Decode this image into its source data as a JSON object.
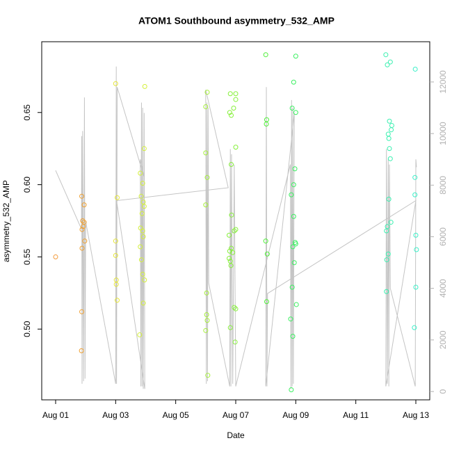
{
  "chart_data": {
    "type": "scatter",
    "title": "ATOM1 Southbound asymmetry_532_AMP",
    "x_label": "Date",
    "y_label": "asymmetry_532_AMP",
    "xlim": [
      0.537,
      13.463
    ],
    "xticks": [
      {
        "value": 1,
        "label": "Aug 01"
      },
      {
        "value": 3,
        "label": "Aug 03"
      },
      {
        "value": 5,
        "label": "Aug 05"
      },
      {
        "value": 7,
        "label": "Aug 07"
      },
      {
        "value": 9,
        "label": "Aug 09"
      },
      {
        "value": 11,
        "label": "Aug 11"
      },
      {
        "value": 13,
        "label": "Aug 13"
      }
    ],
    "ylim": [
      0.451,
      0.699
    ],
    "yticks": [
      {
        "value": 0.5,
        "label": "0.50"
      },
      0.55,
      {
        "value": 0.6,
        "label": "0.60"
      },
      0.65
    ],
    "y2lim": [
      -323,
      13560
    ],
    "y2ticks": [
      0,
      2000,
      4000,
      6000,
      8000,
      10000,
      12000
    ],
    "series": [
      {
        "type": "line",
        "axis": "y2",
        "color": "#c4c4c4",
        "x": [
          1.0,
          1.86,
          1.87,
          1.88,
          1.9,
          1.93,
          1.96,
          1.98,
          2.0,
          3.0,
          3.02,
          3.03,
          3.05,
          3.95,
          3.82,
          3.84,
          3.86,
          3.88,
          3.9,
          3.92,
          3.95,
          3.97,
          3.03,
          6.75,
          6.0,
          6.02,
          6.04,
          6.06,
          6.08,
          6.1,
          6.8,
          6.82,
          6.84,
          6.86,
          6.9,
          6.95,
          7.0,
          8.82,
          8.84,
          8.86,
          8.88,
          8.9,
          8.92,
          8.95,
          8.0,
          8.02,
          8.04,
          8.06,
          13.0,
          12.0,
          12.02,
          12.05,
          12.08,
          12.1,
          12.12,
          12.15,
          12.98,
          13.0,
          13.02
        ],
        "values": [
          8570,
          6300,
          9900,
          300,
          10100,
          400,
          11400,
          500,
          6600,
          300,
          12600,
          300,
          11800,
          8300,
          9000,
          200,
          11200,
          200,
          11000,
          100,
          10800,
          100,
          7400,
          7900,
          11700,
          300,
          11200,
          400,
          11000,
          4200,
          200,
          9400,
          200,
          9200,
          300,
          8800,
          200,
          8800,
          100,
          11300,
          200,
          11000,
          300,
          10800,
          200,
          11800,
          200,
          3800,
          7400,
          200,
          9400,
          300,
          9000,
          200,
          8800,
          4000,
          200,
          9000,
          8700
        ]
      },
      {
        "color": "#f39a3a",
        "x": [
          1.0
        ],
        "values": [
          0.55
        ]
      },
      {
        "color": "#f0a030",
        "x": [
          1.87,
          1.95,
          1.9,
          1.95,
          1.92,
          1.88,
          1.97,
          1.88,
          1.87,
          1.86
        ],
        "values": [
          0.592,
          0.586,
          0.575,
          0.574,
          0.571,
          0.569,
          0.561,
          0.556,
          0.512,
          0.485
        ]
      },
      {
        "color": "#e6e63a",
        "x": [
          3.0,
          3.05,
          3.0,
          3.0,
          3.02,
          3.02,
          3.05
        ],
        "values": [
          0.67,
          0.591,
          0.561,
          0.551,
          0.534,
          0.531,
          0.52
        ]
      },
      {
        "color": "#d4f03a",
        "x": [
          3.97,
          3.95,
          3.82,
          3.9,
          3.85,
          3.92,
          3.95,
          3.88,
          3.83,
          3.9,
          3.92,
          3.82,
          3.86,
          3.9,
          3.96,
          3.92,
          3.8
        ],
        "values": [
          0.668,
          0.625,
          0.608,
          0.601,
          0.592,
          0.588,
          0.585,
          0.58,
          0.57,
          0.568,
          0.564,
          0.557,
          0.548,
          0.538,
          0.534,
          0.518,
          0.496
        ]
      },
      {
        "color": "#a6f03a",
        "x": [
          6.05,
          6.0,
          6.0,
          6.05,
          6.0,
          6.03,
          6.03,
          6.05,
          6.0,
          6.07
        ],
        "values": [
          0.664,
          0.654,
          0.622,
          0.605,
          0.586,
          0.525,
          0.51,
          0.506,
          0.499,
          0.468
        ]
      },
      {
        "color": "#86f03a",
        "x": [
          6.82,
          7.0,
          7.0,
          6.93,
          6.8,
          6.85,
          7.0,
          6.85,
          6.86,
          7.0,
          6.95,
          6.78,
          6.85,
          6.8,
          6.9,
          6.78,
          6.82,
          6.84,
          6.95,
          7.0,
          6.82,
          6.98
        ],
        "values": [
          0.663,
          0.663,
          0.659,
          0.653,
          0.65,
          0.648,
          0.626,
          0.614,
          0.579,
          0.569,
          0.568,
          0.565,
          0.556,
          0.554,
          0.553,
          0.549,
          0.547,
          0.544,
          0.515,
          0.514,
          0.501,
          0.491
        ]
      },
      {
        "color": "#50f03a",
        "x": [
          8.0,
          8.03,
          8.02,
          8.0,
          8.05,
          8.03
        ],
        "values": [
          0.69,
          0.645,
          0.642,
          0.561,
          0.552,
          0.519
        ]
      },
      {
        "color": "#3af060",
        "x": [
          9.0,
          8.93,
          8.88,
          9.0,
          8.97,
          8.93,
          8.85,
          8.93,
          8.98,
          9.0,
          8.9,
          8.95,
          8.88,
          9.02,
          8.83,
          8.9,
          8.85
        ],
        "values": [
          0.689,
          0.671,
          0.653,
          0.65,
          0.611,
          0.6,
          0.593,
          0.578,
          0.56,
          0.559,
          0.557,
          0.546,
          0.529,
          0.517,
          0.507,
          0.495,
          0.458
        ]
      },
      {
        "color": "#3af0b0",
        "x": [
          12.0,
          12.05,
          12.15,
          12.12,
          12.2,
          12.18,
          12.08,
          12.1,
          12.12,
          12.15,
          12.1,
          12.17,
          12.05,
          12.02,
          12.08,
          12.03,
          12.02
        ],
        "values": [
          0.69,
          0.683,
          0.685,
          0.644,
          0.641,
          0.638,
          0.635,
          0.632,
          0.625,
          0.618,
          0.59,
          0.574,
          0.571,
          0.568,
          0.552,
          0.548,
          0.526
        ]
      },
      {
        "color": "#3af0c8",
        "x": [
          12.98,
          12.97,
          12.97,
          13.0,
          13.02,
          13.0,
          12.95
        ],
        "values": [
          0.68,
          0.605,
          0.593,
          0.565,
          0.555,
          0.529,
          0.501
        ]
      }
    ]
  }
}
